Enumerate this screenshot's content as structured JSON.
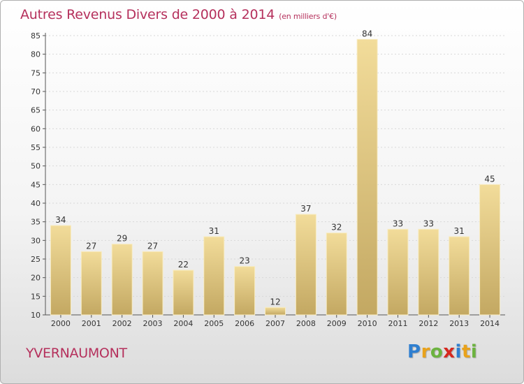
{
  "header": {
    "title": "Autres Revenus Divers de 2000 à 2014",
    "subtitle": "(en milliers d'€)"
  },
  "footer": {
    "town": "YVERNAUMONT"
  },
  "logo": {
    "letters": [
      {
        "ch": "P",
        "color": "#2f7fd0"
      },
      {
        "ch": "r",
        "color": "#e9a21b"
      },
      {
        "ch": "o",
        "color": "#6cb33f"
      },
      {
        "ch": "x",
        "color": "#d6281f"
      },
      {
        "ch": "i",
        "color": "#2f7fd0"
      },
      {
        "ch": "t",
        "color": "#e9a21b"
      },
      {
        "ch": "i",
        "color": "#6cb33f"
      }
    ]
  },
  "colors": {
    "bar_top": "#f2dc9a",
    "bar_bottom": "#c3a862",
    "bar_edge": "#f8ecc2",
    "axis": "#555555",
    "grid": "#d8d8d8"
  },
  "chart_data": {
    "type": "bar",
    "title": "Autres Revenus Divers de 2000 à 2014",
    "subtitle": "(en milliers d'€)",
    "categories": [
      "2000",
      "2001",
      "2002",
      "2003",
      "2004",
      "2005",
      "2006",
      "2007",
      "2008",
      "2009",
      "2010",
      "2011",
      "2012",
      "2013",
      "2014"
    ],
    "values": [
      34,
      27,
      29,
      27,
      22,
      31,
      23,
      12,
      37,
      32,
      84,
      33,
      33,
      31,
      45
    ],
    "ylim": [
      10,
      85
    ],
    "yticks": [
      10,
      15,
      20,
      25,
      30,
      35,
      40,
      45,
      50,
      55,
      60,
      65,
      70,
      75,
      80,
      85
    ],
    "grid": true,
    "data_labels": true,
    "legend": "none"
  }
}
